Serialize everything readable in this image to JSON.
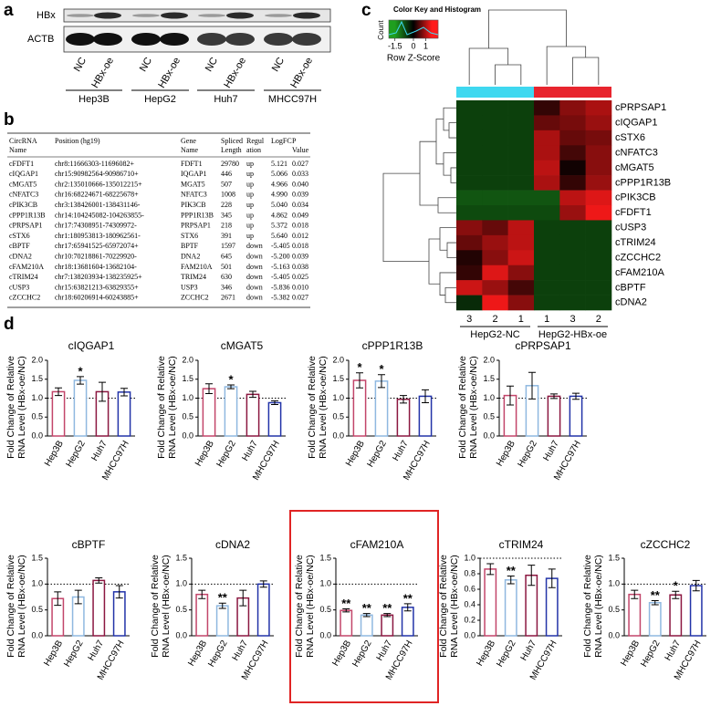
{
  "panel_labels": [
    "a",
    "b",
    "c",
    "d"
  ],
  "blot": {
    "rows": [
      "HBx",
      "ACTB"
    ],
    "lanes": [
      "NC",
      "HBx-oe",
      "NC",
      "HBx-oe",
      "NC",
      "HBx-oe",
      "NC",
      "HBx-oe"
    ],
    "groups": [
      "Hep3B",
      "HepG2",
      "Huh7",
      "MHCC97H"
    ]
  },
  "table": {
    "header": [
      [
        "CircRNA",
        "Name"
      ],
      [
        "Position (hg19)"
      ],
      [
        "Gene",
        "Name"
      ],
      [
        "Spliced",
        "Length"
      ],
      [
        "Regul",
        "ation"
      ],
      [
        "LogFC"
      ],
      [
        "P",
        "Value"
      ]
    ],
    "rows": [
      [
        "cFDFT1",
        "chr8:11666303-11696082+",
        "FDFT1",
        "29780",
        "up",
        "5.121",
        "0.027"
      ],
      [
        "cIQGAP1",
        "chr15:90982564-90986710+",
        "IQGAP1",
        "446",
        "up",
        "5.066",
        "0.033"
      ],
      [
        "cMGAT5",
        "chr2:135010666-135012215+",
        "MGAT5",
        "507",
        "up",
        "4.966",
        "0.040"
      ],
      [
        "cNFATC3",
        "chr16:68224671-68225678+",
        "NFATC3",
        "1008",
        "up",
        "4.990",
        "0.039"
      ],
      [
        "cPIK3CB",
        "chr3:138426001-138431146-",
        "PIK3CB",
        "228",
        "up",
        "5.040",
        "0.034"
      ],
      [
        "cPPP1R13B",
        "chr14:104245082-104263855-",
        "PPP1R13B",
        "345",
        "up",
        "4.862",
        "0.049"
      ],
      [
        "cPRPSAP1",
        "chr17:74308951-74309972-",
        "PRPSAP1",
        "218",
        "up",
        "5.372",
        "0.018"
      ],
      [
        "cSTX6",
        "chr1:180953813-180962561-",
        "STX6",
        "391",
        "up",
        "5.640",
        "0.012"
      ],
      [
        "cBPTF",
        "chr17:65941525-65972074+",
        "BPTF",
        "1597",
        "down",
        "-5.405",
        "0.018"
      ],
      [
        "cDNA2",
        "chr10:70218861-70229920-",
        "DNA2",
        "645",
        "down",
        "-5.200",
        "0.039"
      ],
      [
        "cFAM210A",
        "chr18:13681604-13682104-",
        "FAM210A",
        "501",
        "down",
        "-5.163",
        "0.038"
      ],
      [
        "cTRIM24",
        "chr7:138203934-138235925+",
        "TRIM24",
        "630",
        "down",
        "-5.405",
        "0.025"
      ],
      [
        "cUSP3",
        "chr15:63821213-63829355+",
        "USP3",
        "346",
        "down",
        "-5.836",
        "0.010"
      ],
      [
        "cZCCHC2",
        "chr18:60206914-60243885+",
        "ZCCHC2",
        "2671",
        "down",
        "-5.382",
        "0.027"
      ]
    ]
  },
  "heatmap": {
    "key_title": "Color Key and Histogram",
    "key_ylabel": "Count",
    "key_xlabel": "Row Z-Score",
    "key_range": [
      -2,
      2
    ],
    "key_ticks": [
      -1.5,
      0,
      1
    ],
    "color_range": [
      -1.5,
      1.5
    ],
    "colors": [
      "#1f9f1f",
      "#000000",
      "#ff1a1a"
    ],
    "group_colors": [
      "#3fd8f0",
      "#e8252e"
    ],
    "groups": [
      "HepG2-NC",
      "HepG2-HBx-oe"
    ],
    "columns": [
      "3",
      "2",
      "1",
      "1",
      "3",
      "2"
    ],
    "rows": [
      "cPRPSAP1",
      "cIQGAP1",
      "cSTX6",
      "cNFATC3",
      "cMGAT5",
      "cPPP1R13B",
      "cPIK3CB",
      "cFDFT1",
      "cUSP3",
      "cTRIM24",
      "cZCCHC2",
      "cFAM210A",
      "cBPTF",
      "cDNA2"
    ],
    "values": [
      [
        -0.6,
        -0.6,
        -0.6,
        0.3,
        0.8,
        1.0
      ],
      [
        -0.6,
        -0.6,
        -0.6,
        0.6,
        0.7,
        0.9
      ],
      [
        -0.6,
        -0.6,
        -0.6,
        1.0,
        0.6,
        0.7
      ],
      [
        -0.6,
        -0.6,
        -0.6,
        1.0,
        0.4,
        0.8
      ],
      [
        -0.6,
        -0.6,
        -0.6,
        1.1,
        0.1,
        0.8
      ],
      [
        -0.6,
        -0.6,
        -0.6,
        1.0,
        0.3,
        0.9
      ],
      [
        -0.8,
        -0.8,
        -0.8,
        -0.8,
        1.1,
        1.3
      ],
      [
        -0.7,
        -0.7,
        -0.7,
        -0.7,
        0.9,
        1.4
      ],
      [
        0.8,
        0.6,
        1.1,
        -0.6,
        -0.6,
        -0.6
      ],
      [
        0.6,
        0.9,
        1.1,
        -0.6,
        -0.6,
        -0.6
      ],
      [
        0.2,
        0.8,
        1.2,
        -0.6,
        -0.6,
        -0.6
      ],
      [
        0.3,
        1.3,
        0.8,
        -0.6,
        -0.6,
        -0.6
      ],
      [
        1.2,
        0.9,
        0.4,
        -0.6,
        -0.6,
        -0.6
      ],
      [
        -0.4,
        1.4,
        0.8,
        -0.6,
        -0.6,
        -0.6
      ]
    ]
  },
  "chart_data": [
    {
      "type": "bar",
      "title": "cIQGAP1",
      "ylabel": [
        "Fold Change of Relative",
        "RNA Level (HBx-oe/NC)"
      ],
      "categories": [
        "Hep3B",
        "HepG2",
        "Huh7",
        "MHCC97H"
      ],
      "colors": [
        "#c2456a",
        "#8fb8e0",
        "#8b1740",
        "#2233a8"
      ],
      "values": [
        1.17,
        1.47,
        1.17,
        1.16
      ],
      "errors": [
        0.1,
        0.1,
        0.25,
        0.1
      ],
      "annotations": [
        {
          "index": 1,
          "label": "*"
        }
      ],
      "ylim": [
        0,
        2
      ],
      "yticks": [
        {
          "value": 0,
          "label": "0.0"
        },
        {
          "value": 0.5,
          "label": "0.5"
        },
        {
          "value": 1,
          "label": "1.0"
        },
        {
          "value": 1.5,
          "label": "1.5"
        },
        {
          "value": 2,
          "label": "2.0"
        }
      ],
      "ref_line": 1
    },
    {
      "type": "bar",
      "title": "cMGAT5",
      "ylabel": [
        "Fold Change of Relative",
        "RNA Level (HBx-oe/NC)"
      ],
      "categories": [
        "Hep3B",
        "HepG2",
        "Huh7",
        "MHCC97H"
      ],
      "colors": [
        "#c2456a",
        "#8fb8e0",
        "#8b1740",
        "#2233a8"
      ],
      "values": [
        1.25,
        1.3,
        1.1,
        0.88
      ],
      "errors": [
        0.13,
        0.05,
        0.08,
        0.05
      ],
      "annotations": [
        {
          "index": 1,
          "label": "*"
        }
      ],
      "ylim": [
        0,
        2
      ],
      "yticks": [
        {
          "value": 0,
          "label": "0.0"
        },
        {
          "value": 0.5,
          "label": "0.5"
        },
        {
          "value": 1,
          "label": "1.0"
        },
        {
          "value": 1.5,
          "label": "1.5"
        },
        {
          "value": 2,
          "label": "2.0"
        }
      ],
      "ref_line": 1
    },
    {
      "type": "bar",
      "title": "cPPP1R13B",
      "ylabel": [
        "Fold Change of Relative",
        "RNA Level (HBx-oe/NC)"
      ],
      "categories": [
        "Hep3B",
        "HepG2",
        "Huh7",
        "MHCC97H"
      ],
      "colors": [
        "#c2456a",
        "#8fb8e0",
        "#8b1740",
        "#2233a8"
      ],
      "values": [
        1.47,
        1.45,
        0.97,
        1.05
      ],
      "errors": [
        0.2,
        0.17,
        0.1,
        0.17
      ],
      "annotations": [
        {
          "index": 0,
          "label": "*"
        },
        {
          "index": 1,
          "label": "*"
        }
      ],
      "ylim": [
        0,
        2
      ],
      "yticks": [
        {
          "value": 0,
          "label": "0.0"
        },
        {
          "value": 0.5,
          "label": "0.5"
        },
        {
          "value": 1,
          "label": "1.0"
        },
        {
          "value": 1.5,
          "label": "1.5"
        },
        {
          "value": 2,
          "label": "2.0"
        }
      ],
      "ref_line": 1
    },
    {
      "type": "bar",
      "title": "cPRPSAP1",
      "ylabel": [
        "Fold Change of Relative",
        "RNA Level (HBx-oe/NC)"
      ],
      "categories": [
        "Hep3B",
        "HepG2",
        "Huh7",
        "MHCC97H"
      ],
      "colors": [
        "#c2456a",
        "#8fb8e0",
        "#8b1740",
        "#2233a8"
      ],
      "values": [
        1.07,
        1.33,
        1.05,
        1.05
      ],
      "errors": [
        0.25,
        0.35,
        0.06,
        0.08
      ],
      "annotations": [],
      "ylim": [
        0,
        2
      ],
      "yticks": [
        {
          "value": 0,
          "label": "0.0"
        },
        {
          "value": 0.5,
          "label": "0.5"
        },
        {
          "value": 1,
          "label": "1.0"
        },
        {
          "value": 1.5,
          "label": "1.5"
        },
        {
          "value": 2,
          "label": "2.0"
        }
      ],
      "ref_line": 1
    },
    {
      "type": "bar",
      "title": "cBPTF",
      "ylabel": [
        "Fold Change of Relative",
        "RNA Level (HBx-oe/NC)"
      ],
      "categories": [
        "Hep3B",
        "HepG2",
        "Huh7",
        "MHCC97H"
      ],
      "colors": [
        "#c2456a",
        "#8fb8e0",
        "#8b1740",
        "#2233a8"
      ],
      "values": [
        0.72,
        0.75,
        1.07,
        0.85
      ],
      "errors": [
        0.13,
        0.13,
        0.05,
        0.12
      ],
      "annotations": [],
      "ylim": [
        0,
        1.5
      ],
      "yticks": [
        {
          "value": 0,
          "label": "0.0"
        },
        {
          "value": 0.5,
          "label": "0.5"
        },
        {
          "value": 1,
          "label": "1.0"
        },
        {
          "value": 1.5,
          "label": "1.5"
        }
      ],
      "ref_line": 1
    },
    {
      "type": "bar",
      "title": "cDNA2",
      "ylabel": [
        "Fold Change of Relative",
        "RNA Level (HBx-oe/NC)"
      ],
      "categories": [
        "Hep3B",
        "HepG2",
        "Huh7",
        "MHCC97H"
      ],
      "colors": [
        "#c2456a",
        "#8fb8e0",
        "#8b1740",
        "#2233a8"
      ],
      "values": [
        0.8,
        0.58,
        0.73,
        1.0
      ],
      "errors": [
        0.08,
        0.05,
        0.15,
        0.06
      ],
      "annotations": [
        {
          "index": 1,
          "label": "**"
        }
      ],
      "ylim": [
        0,
        1.5
      ],
      "yticks": [
        {
          "value": 0,
          "label": "0.0"
        },
        {
          "value": 0.5,
          "label": "0.5"
        },
        {
          "value": 1,
          "label": "1.0"
        },
        {
          "value": 1.5,
          "label": "1.5"
        }
      ],
      "ref_line": 1
    },
    {
      "type": "bar",
      "title": "cFAM210A",
      "ylabel": [
        "Fold Change of Relative",
        "RNA Level (HBx-oe/NC)"
      ],
      "categories": [
        "Hep3B",
        "HepG2",
        "Huh7",
        "MHCC97H"
      ],
      "colors": [
        "#c2456a",
        "#8fb8e0",
        "#8b1740",
        "#2233a8"
      ],
      "values": [
        0.49,
        0.4,
        0.4,
        0.55
      ],
      "errors": [
        0.03,
        0.03,
        0.03,
        0.07
      ],
      "annotations": [
        {
          "index": 0,
          "label": "**"
        },
        {
          "index": 1,
          "label": "**"
        },
        {
          "index": 2,
          "label": "**"
        },
        {
          "index": 3,
          "label": "**"
        }
      ],
      "ylim": [
        0,
        1.5
      ],
      "yticks": [
        {
          "value": 0,
          "label": "0.0"
        },
        {
          "value": 0.5,
          "label": "0.5"
        },
        {
          "value": 1,
          "label": "1.0"
        },
        {
          "value": 1.5,
          "label": "1.5"
        }
      ],
      "ref_line": 1,
      "highlight_color": "#e02424"
    },
    {
      "type": "bar",
      "title": "cTRIM24",
      "ylabel": [
        "Fold Change of Relative",
        "RNA Level (HBx-oe/NC)"
      ],
      "categories": [
        "Hep3B",
        "HepG2",
        "Huh7",
        "MHCC97H"
      ],
      "colors": [
        "#c2456a",
        "#8fb8e0",
        "#8b1740",
        "#2233a8"
      ],
      "values": [
        0.86,
        0.72,
        0.78,
        0.74
      ],
      "errors": [
        0.07,
        0.05,
        0.13,
        0.12
      ],
      "annotations": [
        {
          "index": 1,
          "label": "**"
        }
      ],
      "ylim": [
        0,
        1
      ],
      "yticks": [
        {
          "value": 0,
          "label": "0.0"
        },
        {
          "value": 0.2,
          "label": "0.2"
        },
        {
          "value": 0.4,
          "label": "0.4"
        },
        {
          "value": 0.6,
          "label": "0.6"
        },
        {
          "value": 0.8,
          "label": "0.8"
        },
        {
          "value": 1,
          "label": "1.0"
        }
      ],
      "ref_line": 1
    },
    {
      "type": "bar",
      "title": "cZCCHC2",
      "ylabel": [
        "Fold Change of Relative",
        "RNA Level (HBx-oe/NC)"
      ],
      "categories": [
        "Hep3B",
        "HepG2",
        "Huh7",
        "MHCC97H"
      ],
      "colors": [
        "#c2456a",
        "#8fb8e0",
        "#8b1740",
        "#2233a8"
      ],
      "values": [
        0.8,
        0.64,
        0.79,
        0.97
      ],
      "errors": [
        0.08,
        0.04,
        0.07,
        0.1
      ],
      "annotations": [
        {
          "index": 1,
          "label": "**"
        },
        {
          "index": 2,
          "label": "*"
        }
      ],
      "ylim": [
        0,
        1.5
      ],
      "yticks": [
        {
          "value": 0,
          "label": "0.0"
        },
        {
          "value": 0.5,
          "label": "0.5"
        },
        {
          "value": 1,
          "label": "1.0"
        },
        {
          "value": 1.5,
          "label": "1.5"
        }
      ],
      "ref_line": 1
    }
  ]
}
